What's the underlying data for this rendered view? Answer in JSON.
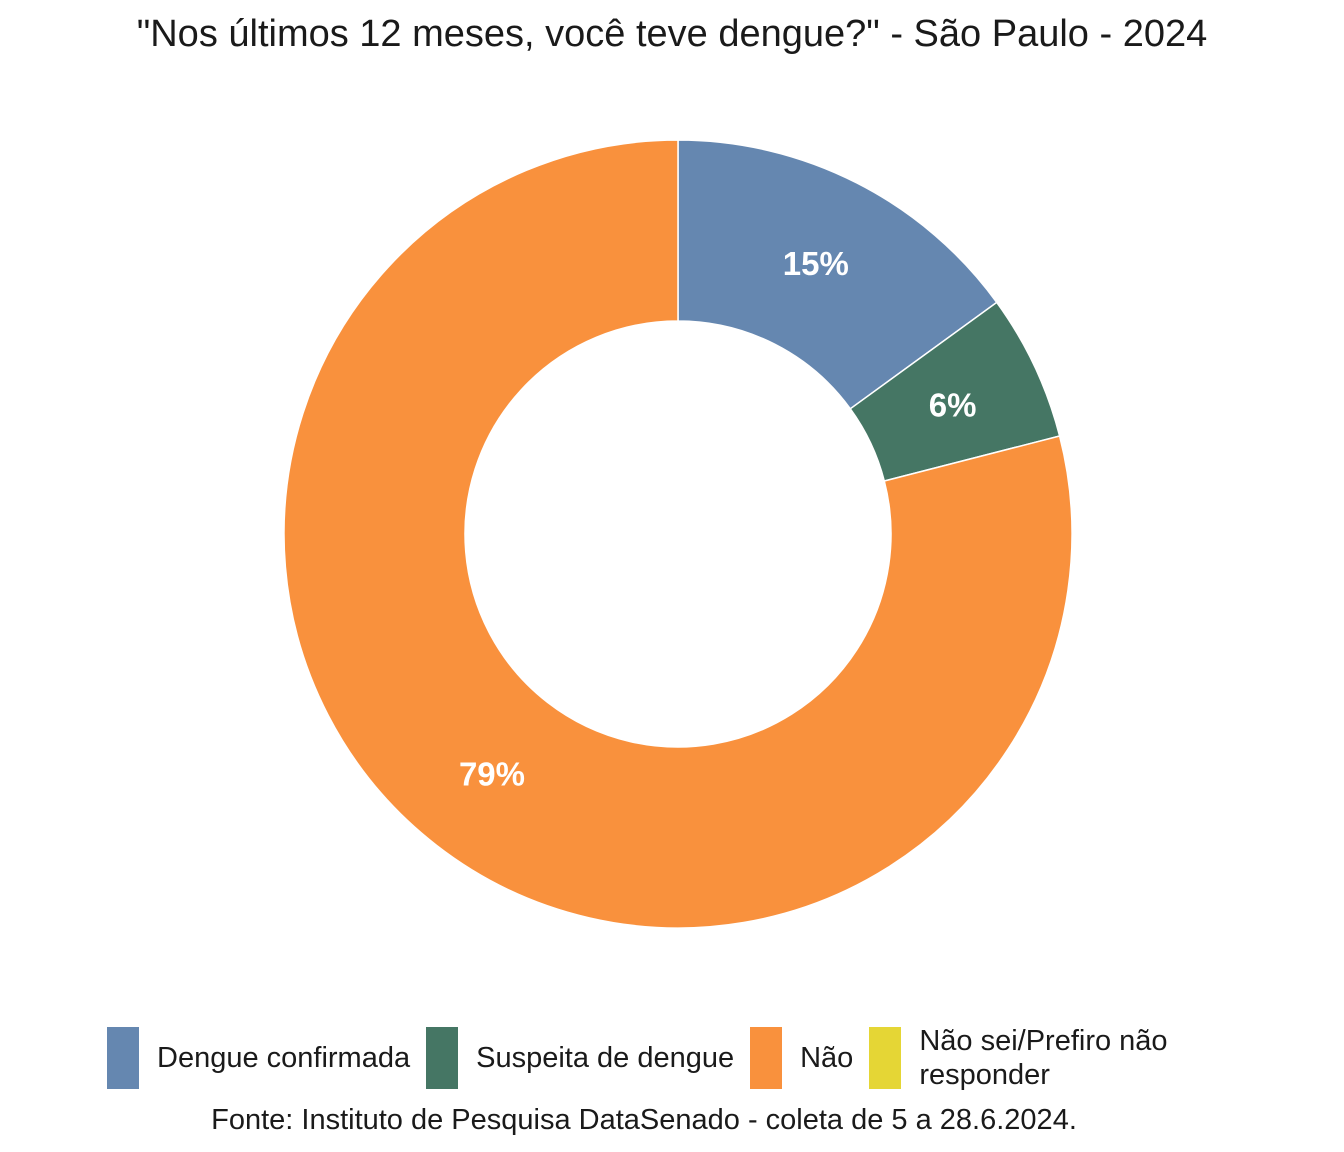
{
  "chart_data": {
    "type": "pie",
    "title": "\"Nos últimos 12 meses, você teve dengue?\" - São Paulo - 2024",
    "categories": [
      "Dengue confirmada",
      "Suspeita de dengue",
      "Não",
      "Não sei/Prefiro não responder"
    ],
    "values": [
      15,
      6,
      79,
      0
    ],
    "labels": [
      "15%",
      "6%",
      "79%",
      ""
    ],
    "colors": [
      "#6587B0",
      "#457664",
      "#F9913D",
      "#E5D635"
    ],
    "donut": true,
    "legend_position": "bottom",
    "caption": "Fonte: Instituto de Pesquisa DataSenado - coleta de 5 a 28.6.2024."
  }
}
